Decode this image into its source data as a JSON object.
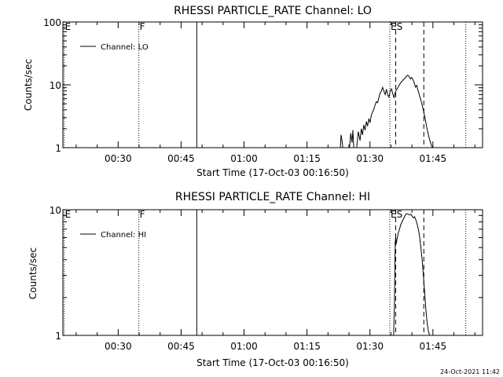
{
  "footer": {
    "timestamp": "24-Oct-2021 11:42"
  },
  "chart_data": [
    {
      "type": "line",
      "title": "RHESSI PARTICLE_RATE Channel: LO",
      "xlabel": "Start Time (17-Oct-03 00:16:50)",
      "ylabel": "Counts/sec",
      "yscale": "log",
      "ylim": [
        1,
        100
      ],
      "xlim_minutes": [
        0,
        100
      ],
      "x_ticks": [
        {
          "value": 13.17,
          "label": "00:30"
        },
        {
          "value": 28.17,
          "label": "00:45"
        },
        {
          "value": 43.17,
          "label": "01:00"
        },
        {
          "value": 58.17,
          "label": "01:15"
        },
        {
          "value": 73.17,
          "label": "01:30"
        },
        {
          "value": 88.17,
          "label": "01:45"
        }
      ],
      "y_ticks": [
        {
          "value": 1,
          "label": "1"
        },
        {
          "value": 10,
          "label": "10"
        },
        {
          "value": 100,
          "label": "100"
        }
      ],
      "legend": "Channel: LO",
      "markers": [
        {
          "x": 0.3,
          "style": "dotted",
          "label": "E"
        },
        {
          "x": 18.1,
          "style": "dotted",
          "label": "F"
        },
        {
          "x": 31.9,
          "style": "solid",
          "label": ""
        },
        {
          "x": 77.9,
          "style": "dotted",
          "label": "ES"
        },
        {
          "x": 79.3,
          "style": "dashed",
          "label": ""
        },
        {
          "x": 86.0,
          "style": "dashed",
          "label": ""
        },
        {
          "x": 96.0,
          "style": "dotted",
          "label": ""
        }
      ],
      "series": [
        {
          "name": "Channel: LO",
          "x": [
            66.1,
            66.3,
            66.5,
            66.7,
            68.3,
            68.6,
            68.9,
            69.1,
            69.3,
            69.5,
            70.0,
            70.4,
            70.8,
            71.1,
            71.4,
            71.7,
            72.0,
            72.3,
            72.6,
            72.9,
            73.2,
            73.5,
            73.8,
            74.1,
            74.4,
            74.7,
            75.0,
            75.3,
            75.6,
            75.9,
            76.2,
            76.5,
            76.8,
            77.1,
            77.4,
            77.7,
            78.0,
            78.3,
            78.6,
            78.9,
            79.2,
            79.5,
            79.8,
            80.1,
            80.4,
            80.7,
            81.0,
            81.3,
            81.6,
            81.9,
            82.2,
            82.5,
            82.8,
            83.1,
            83.4,
            83.7,
            84.0,
            84.3,
            84.6,
            84.9,
            85.2,
            85.5,
            85.8,
            86.1,
            86.4,
            86.7,
            87.0,
            87.3,
            87.6,
            87.9,
            88.2
          ],
          "values": [
            1.0,
            1.6,
            1.3,
            1.0,
            1.0,
            1.7,
            1.2,
            1.9,
            1.0,
            1.0,
            1.0,
            1.8,
            1.3,
            2.0,
            1.6,
            2.3,
            1.9,
            2.6,
            2.2,
            2.9,
            2.5,
            3.3,
            3.7,
            4.1,
            4.8,
            5.4,
            5.2,
            6.3,
            7.4,
            8.0,
            9.1,
            7.9,
            7.0,
            8.5,
            6.9,
            6.4,
            8.0,
            8.6,
            7.2,
            6.3,
            7.6,
            8.3,
            9.0,
            9.8,
            10.5,
            11.2,
            11.8,
            12.3,
            12.9,
            13.8,
            14.2,
            13.6,
            12.4,
            13.1,
            12.0,
            10.9,
            9.2,
            9.8,
            8.2,
            7.0,
            6.0,
            5.1,
            4.2,
            3.4,
            2.7,
            2.1,
            1.7,
            1.4,
            1.2,
            1.05,
            1.0
          ]
        }
      ]
    },
    {
      "type": "line",
      "title": "RHESSI PARTICLE_RATE Channel: HI",
      "xlabel": "Start Time (17-Oct-03 00:16:50)",
      "ylabel": "Counts/sec",
      "yscale": "log",
      "ylim": [
        1,
        10
      ],
      "xlim_minutes": [
        0,
        100
      ],
      "x_ticks": [
        {
          "value": 13.17,
          "label": "00:30"
        },
        {
          "value": 28.17,
          "label": "00:45"
        },
        {
          "value": 43.17,
          "label": "01:00"
        },
        {
          "value": 58.17,
          "label": "01:15"
        },
        {
          "value": 73.17,
          "label": "01:30"
        },
        {
          "value": 88.17,
          "label": "01:45"
        }
      ],
      "y_ticks": [
        {
          "value": 1,
          "label": "1"
        },
        {
          "value": 10,
          "label": "10"
        }
      ],
      "legend": "Channel: HI",
      "markers": [
        {
          "x": 0.3,
          "style": "dotted",
          "label": "E"
        },
        {
          "x": 18.1,
          "style": "dotted",
          "label": "F"
        },
        {
          "x": 31.9,
          "style": "solid",
          "label": ""
        },
        {
          "x": 77.9,
          "style": "dotted",
          "label": "ES"
        },
        {
          "x": 79.3,
          "style": "dashed",
          "label": ""
        },
        {
          "x": 86.0,
          "style": "dashed",
          "label": ""
        },
        {
          "x": 96.0,
          "style": "dotted",
          "label": ""
        }
      ],
      "series": [
        {
          "name": "Channel: HI",
          "x": [
            78.8,
            79.0,
            79.1,
            79.2,
            79.3,
            79.4,
            79.6,
            79.9,
            80.2,
            80.5,
            80.8,
            81.1,
            81.4,
            81.7,
            82.0,
            82.3,
            82.6,
            82.9,
            83.2,
            83.5,
            83.8,
            84.1,
            84.4,
            84.7,
            85.0,
            85.3,
            85.6,
            85.9,
            86.2,
            86.5,
            86.8,
            87.1,
            87.4
          ],
          "values": [
            1.0,
            1.8,
            3.5,
            5.5,
            6.1,
            5.3,
            5.8,
            6.5,
            7.0,
            7.6,
            8.0,
            8.4,
            8.8,
            9.2,
            9.3,
            9.2,
            9.1,
            9.2,
            8.9,
            8.6,
            8.8,
            8.3,
            7.7,
            7.0,
            6.1,
            5.0,
            4.0,
            3.0,
            2.2,
            1.6,
            1.25,
            1.08,
            1.0
          ]
        }
      ]
    }
  ]
}
